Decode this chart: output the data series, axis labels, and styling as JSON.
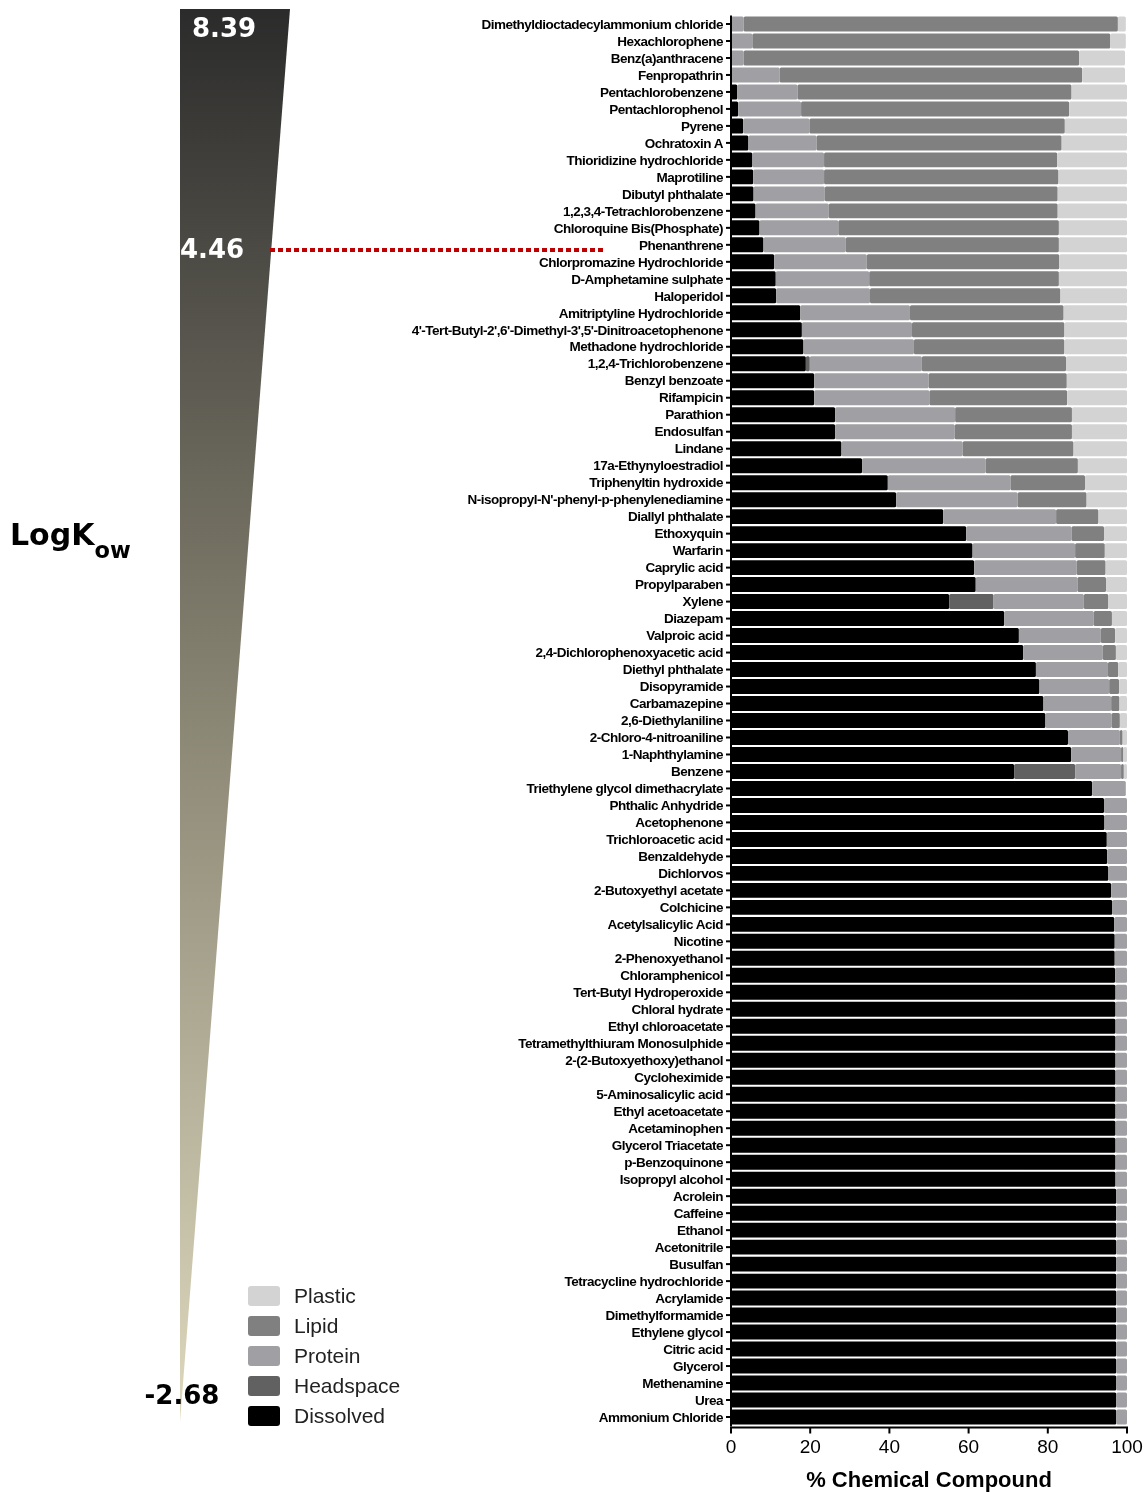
{
  "chart_data": {
    "type": "bar",
    "orientation": "horizontal",
    "stacked": true,
    "xlabel": "% Chemical Compound",
    "xlim": [
      0,
      100
    ],
    "xticks": [
      0,
      20,
      40,
      60,
      80,
      100
    ],
    "legend": "bottom left",
    "annotations": [
      "8.39",
      "4.46",
      "-2.68",
      "LogK$_{ow}$"
    ],
    "categories": [
      "Dimethyldioctadecylammonium chloride",
      "Hexachlorophene",
      "Benz(a)anthracene",
      "Fenpropathrin",
      "Pentachlorobenzene",
      "Pentachlorophenol",
      "Pyrene",
      "Ochratoxin A",
      "Thioridizine hydrochloride",
      "Maprotiline",
      "Dibutyl phthalate",
      "1,2,3,4-Tetrachlorobenzene",
      "Chloroquine Bis(Phosphate)",
      "Phenanthrene",
      "Chlorpromazine Hydrochloride",
      "D-Amphetamine sulphate",
      "Haloperidol",
      "Amitriptyline Hydrochloride",
      "4'-Tert-Butyl-2',6'-Dimethyl-3',5'-Dinitroacetophenone",
      "Methadone hydrochloride",
      "1,2,4-Trichlorobenzene",
      "Benzyl benzoate",
      "Rifampicin",
      "Parathion",
      "Endosulfan",
      "Lindane",
      "17a-Ethynyloestradiol",
      "Triphenyltin hydroxide",
      "N-isopropyl-N'-phenyl-p-phenylenediamine",
      "Diallyl phthalate",
      "Ethoxyquin",
      "Warfarin",
      "Caprylic acid",
      "Propylparaben",
      "Xylene",
      "Diazepam",
      "Valproic acid",
      "2,4-Dichlorophenoxyacetic acid",
      "Diethyl phthalate",
      "Disopyramide",
      "Carbamazepine",
      "2,6-Diethylaniline",
      "2-Chloro-4-nitroaniline",
      "1-Naphthylamine",
      "Benzene",
      "Triethylene glycol dimethacrylate",
      "Phthalic Anhydride",
      "Acetophenone",
      "Trichloroacetic acid",
      "Benzaldehyde",
      "Dichlorvos",
      "2-Butoxyethyl acetate",
      "Colchicine",
      "Acetylsalicylic Acid",
      "Nicotine",
      "2-Phenoxyethanol",
      "Chloramphenicol",
      "Tert-Butyl Hydroperoxide",
      "Chloral hydrate",
      "Ethyl chloroacetate",
      "Tetramethylthiuram Monosulphide",
      "2-(2-Butoxyethoxy)ethanol",
      "Cycloheximide",
      "5-Aminosalicylic acid",
      "Ethyl acetoacetate",
      "Acetaminophen",
      "Glycerol Triacetate",
      "p-Benzoquinone",
      "Isopropyl alcohol",
      "Acrolein",
      "Caffeine",
      "Ethanol",
      "Acetonitrile",
      "Busulfan",
      "Tetracycline hydrochloride",
      "Acrylamide",
      "Dimethylformamide",
      "Ethylene glycol",
      "Citric acid",
      "Glycerol",
      "Methenamine",
      "Urea",
      "Ammonium Chloride"
    ],
    "series": [
      {
        "name": "Dissolved",
        "color": "#000000",
        "values": [
          null,
          null,
          null,
          null,
          1.6,
          1.8,
          3.1,
          4.4,
          5.4,
          5.6,
          5.7,
          6.2,
          7.2,
          8.2,
          10.9,
          11.3,
          11.4,
          17.5,
          17.9,
          18.3,
          18.9,
          21.0,
          21.0,
          26.3,
          26.3,
          27.9,
          33.1,
          39.6,
          41.7,
          53.6,
          59.4,
          61.0,
          61.4,
          61.8,
          55.1,
          69.0,
          72.7,
          73.8,
          77.0,
          77.9,
          78.9,
          79.4,
          85.1,
          85.9,
          71.5,
          91.2,
          94.2,
          94.3,
          94.9,
          95.0,
          95.3,
          96.0,
          96.3,
          96.8,
          96.9,
          96.9,
          97.0,
          97.1,
          97.1,
          97.1,
          97.1,
          97.1,
          97.1,
          97.1,
          97.1,
          97.1,
          97.1,
          97.1,
          97.1,
          97.3,
          97.3,
          97.3,
          97.3,
          97.3,
          97.3,
          97.3,
          97.3,
          97.3,
          97.3,
          97.3,
          97.3,
          97.3,
          97.3
        ]
      },
      {
        "name": "Headspace",
        "color": "#616161",
        "values": [
          0,
          0,
          0,
          0,
          0,
          0,
          0,
          0,
          0,
          0,
          0,
          0,
          0,
          0,
          0,
          0,
          0,
          0,
          0,
          0,
          1.0,
          0,
          0,
          0,
          0,
          0,
          0,
          0,
          0,
          0,
          0,
          0,
          0,
          0,
          11.2,
          0,
          0,
          0,
          0,
          0,
          0,
          0,
          0,
          0,
          15.4,
          0,
          0,
          0,
          0,
          0,
          0,
          0,
          0,
          0,
          0,
          0,
          0,
          0,
          0,
          0,
          0,
          0,
          0,
          0,
          0,
          0,
          0,
          0,
          0,
          0,
          0,
          0,
          0,
          0,
          0,
          0,
          0,
          0,
          0,
          0,
          0,
          0,
          0
        ]
      },
      {
        "name": "Protein",
        "color": "#a0a0a4",
        "values": [
          3.2,
          5.4,
          3.2,
          12.3,
          15.2,
          15.9,
          16.7,
          17.2,
          18.1,
          17.9,
          18.0,
          18.5,
          19.9,
          20.8,
          23.4,
          23.6,
          23.7,
          27.7,
          27.8,
          27.9,
          28.3,
          28.9,
          29.1,
          30.3,
          30.2,
          30.6,
          31.2,
          31.0,
          30.7,
          28.5,
          26.6,
          25.9,
          25.9,
          25.7,
          22.8,
          22.6,
          20.7,
          20.1,
          18.2,
          17.6,
          17.1,
          16.7,
          13.1,
          12.6,
          11.6,
          8.5,
          5.8,
          5.7,
          5.1,
          5.0,
          4.7,
          4.0,
          3.7,
          3.2,
          3.1,
          3.1,
          3.0,
          2.9,
          2.9,
          2.9,
          2.9,
          2.9,
          2.9,
          2.9,
          2.9,
          2.9,
          2.9,
          2.9,
          2.9,
          2.7,
          2.7,
          2.7,
          2.7,
          2.7,
          2.7,
          2.7,
          2.7,
          2.7,
          2.7,
          2.7,
          2.7,
          2.7,
          2.7
        ]
      },
      {
        "name": "Lipid",
        "color": "#808080",
        "values": [
          94.5,
          90.4,
          84.7,
          76.4,
          69.2,
          67.7,
          64.5,
          61.9,
          58.9,
          59.2,
          58.8,
          57.8,
          55.7,
          53.8,
          48.6,
          47.9,
          48.1,
          38.8,
          38.5,
          38.0,
          36.4,
          34.9,
          34.8,
          29.5,
          29.6,
          28.0,
          23.3,
          18.8,
          17.4,
          10.7,
          8.2,
          7.5,
          7.3,
          7.2,
          6.2,
          4.6,
          3.6,
          3.3,
          2.6,
          2.5,
          2.1,
          2.1,
          0.7,
          0.6,
          0.7,
          0,
          0,
          0,
          0,
          0,
          0,
          0,
          0,
          0,
          0,
          0,
          0,
          0,
          0,
          0,
          0,
          0,
          0,
          0,
          0,
          0,
          0,
          0,
          0,
          0,
          0,
          0,
          0,
          0,
          0,
          0,
          0,
          0,
          0,
          0,
          0,
          0,
          0
        ]
      },
      {
        "name": "Plastic",
        "color": "#d3d3d3",
        "values": [
          2.0,
          3.9,
          11.6,
          10.8,
          14.0,
          14.6,
          15.7,
          16.5,
          17.6,
          17.3,
          17.5,
          17.5,
          17.2,
          17.2,
          17.1,
          17.2,
          16.8,
          16.0,
          15.8,
          15.8,
          15.4,
          15.2,
          15.1,
          13.9,
          13.9,
          13.5,
          12.4,
          10.6,
          10.2,
          7.2,
          5.8,
          5.6,
          5.4,
          5.3,
          4.7,
          3.8,
          3.0,
          2.8,
          2.2,
          2.0,
          1.9,
          1.8,
          1.1,
          0.9,
          0.8,
          null,
          0,
          0,
          0,
          0,
          0,
          0,
          0,
          0,
          0,
          0,
          0,
          0,
          0,
          0,
          0,
          0,
          0,
          0,
          0,
          0,
          0,
          0,
          0,
          0,
          0,
          0,
          0,
          0,
          0,
          0,
          0,
          0,
          0,
          0,
          0,
          0,
          0
        ]
      }
    ]
  }
}
